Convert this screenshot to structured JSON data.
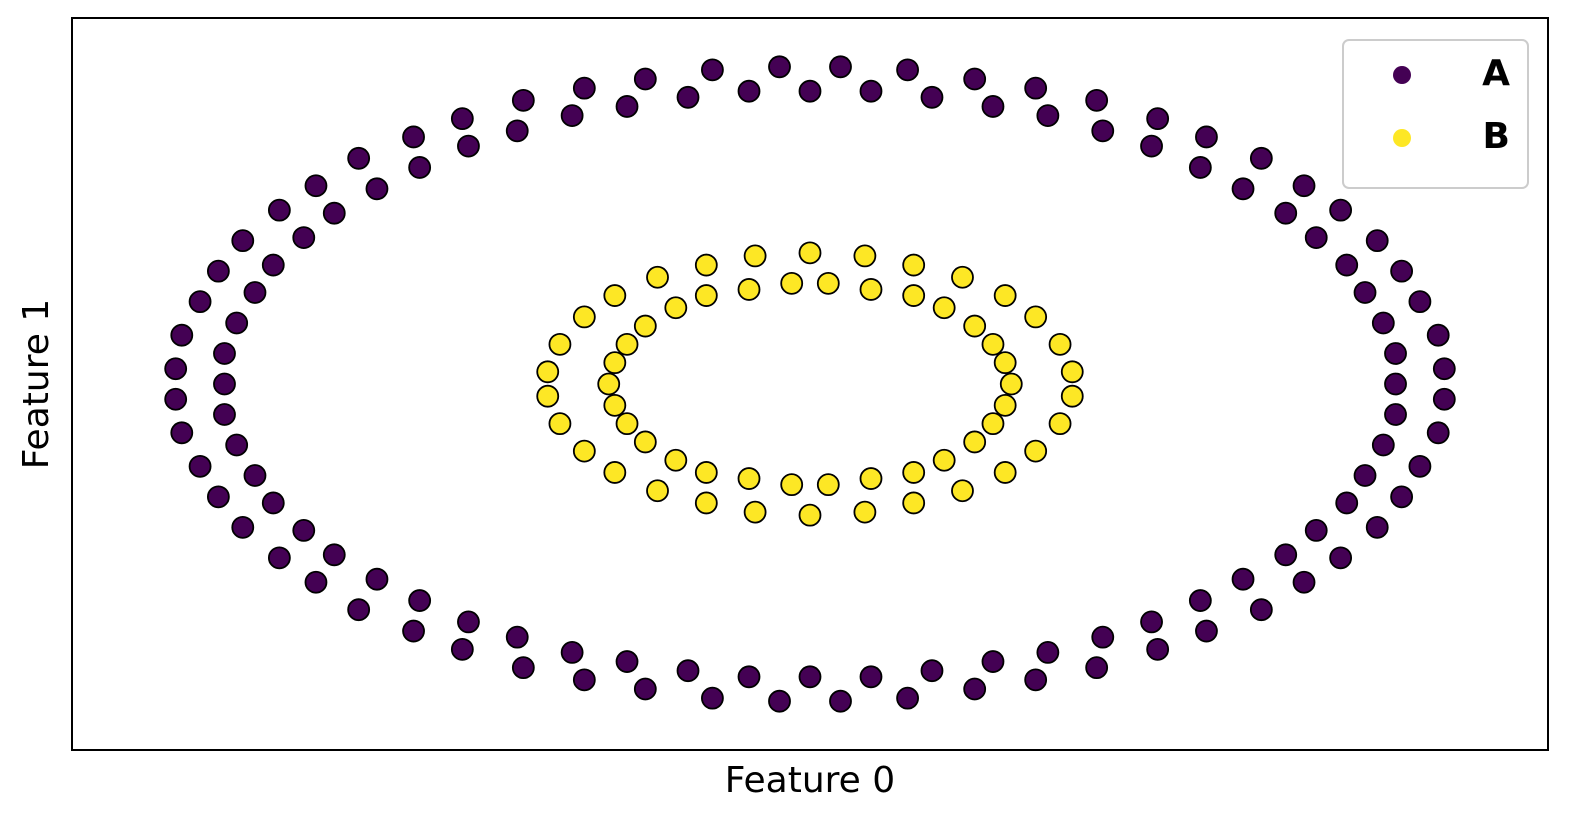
{
  "chart_data": {
    "type": "scatter",
    "xlabel": "Feature 0",
    "ylabel": "Feature 1",
    "xlim": [
      -1.21,
      1.21
    ],
    "ylim": [
      -1.2,
      1.2
    ],
    "legend": "upper right",
    "series": [
      {
        "name": "A",
        "color": "#440154",
        "x": [
          0.96,
          0.96,
          0.94,
          0.91,
          0.88,
          0.83,
          0.78,
          0.71,
          0.64,
          0.56,
          0.48,
          0.39,
          0.3,
          0.2,
          0.1,
          1.04,
          1.03,
          1.0,
          0.97,
          0.93,
          0.87,
          0.81,
          0.74,
          0.65,
          0.57,
          0.47,
          0.37,
          0.27,
          0.16,
          0.05,
          -0.96,
          -0.96,
          -0.94,
          -0.91,
          -0.88,
          -0.83,
          -0.78,
          -0.71,
          -0.64,
          -0.56,
          -0.48,
          -0.39,
          -0.3,
          -0.2,
          -0.1,
          -1.04,
          -1.03,
          -1.0,
          -0.97,
          -0.93,
          -0.87,
          -0.81,
          -0.74,
          -0.65,
          -0.57,
          -0.47,
          -0.37,
          -0.27,
          -0.16,
          -0.05,
          -0.96,
          -0.94,
          -0.91,
          -0.88,
          -0.83,
          -0.78,
          -0.71,
          -0.64,
          -0.56,
          -0.48,
          -0.39,
          -0.3,
          -0.2,
          -0.1,
          -1.04,
          -1.03,
          -1.0,
          -0.97,
          -0.93,
          -0.87,
          -0.81,
          -0.74,
          -0.65,
          -0.57,
          -0.47,
          -0.37,
          -0.27,
          -0.16,
          -0.05,
          0.96,
          0.94,
          0.91,
          0.88,
          0.83,
          0.78,
          0.71,
          0.64,
          0.56,
          0.48,
          0.39,
          0.3,
          0.2,
          0.1,
          1.04,
          1.03,
          1.0,
          0.97,
          0.93,
          0.87,
          0.81,
          0.74,
          0.65,
          0.57,
          0.47,
          0.37,
          0.27,
          0.16,
          0.05,
          0,
          0
        ],
        "values": [
          0,
          0.1,
          0.2,
          0.3,
          0.39,
          0.48,
          0.56,
          0.64,
          0.71,
          0.78,
          0.83,
          0.88,
          0.91,
          0.94,
          0.96,
          0.05,
          0.16,
          0.27,
          0.37,
          0.47,
          0.57,
          0.65,
          0.74,
          0.81,
          0.87,
          0.93,
          0.97,
          1.0,
          1.03,
          1.04,
          0,
          0.1,
          0.2,
          0.3,
          0.39,
          0.48,
          0.56,
          0.64,
          0.71,
          0.78,
          0.83,
          0.88,
          0.91,
          0.94,
          0.96,
          0.05,
          0.16,
          0.27,
          0.37,
          0.47,
          0.57,
          0.65,
          0.74,
          0.81,
          0.87,
          0.93,
          0.97,
          1.0,
          1.03,
          1.04,
          -0.1,
          -0.2,
          -0.3,
          -0.39,
          -0.48,
          -0.56,
          -0.64,
          -0.71,
          -0.78,
          -0.83,
          -0.88,
          -0.91,
          -0.94,
          -0.96,
          -0.05,
          -0.16,
          -0.27,
          -0.37,
          -0.47,
          -0.57,
          -0.65,
          -0.74,
          -0.81,
          -0.87,
          -0.93,
          -0.97,
          -1.0,
          -1.03,
          -1.04,
          -0.1,
          -0.2,
          -0.3,
          -0.39,
          -0.48,
          -0.56,
          -0.64,
          -0.71,
          -0.78,
          -0.83,
          -0.88,
          -0.91,
          -0.94,
          -0.96,
          -0.05,
          -0.16,
          -0.27,
          -0.37,
          -0.47,
          -0.57,
          -0.65,
          -0.74,
          -0.81,
          -0.87,
          -0.93,
          -0.97,
          -1.0,
          -1.03,
          -1.04,
          0.96,
          -0.96
        ]
      },
      {
        "name": "B",
        "color": "#fde725",
        "x": [
          0.33,
          0.32,
          0.3,
          0.27,
          0.22,
          0.17,
          0.1,
          0.03,
          -0.03,
          -0.1,
          -0.17,
          -0.22,
          -0.27,
          -0.3,
          -0.32,
          -0.33,
          -0.32,
          -0.3,
          -0.27,
          -0.22,
          -0.17,
          -0.1,
          -0.03,
          0.03,
          0.1,
          0.17,
          0.22,
          0.27,
          0.3,
          0.32,
          0.43,
          0.41,
          0.37,
          0.32,
          0.25,
          0.17,
          0.09,
          0,
          -0.43,
          -0.41,
          -0.37,
          -0.32,
          -0.25,
          -0.17,
          -0.09,
          -0.43,
          -0.41,
          -0.37,
          -0.32,
          -0.25,
          -0.17,
          -0.09,
          0.43,
          0.41,
          0.37,
          0.32,
          0.25,
          0.17,
          0.09,
          0
        ],
        "values": [
          0,
          0.07,
          0.13,
          0.19,
          0.25,
          0.29,
          0.31,
          0.33,
          0.33,
          0.31,
          0.29,
          0.25,
          0.19,
          0.13,
          0.07,
          0,
          -0.07,
          -0.13,
          -0.19,
          -0.25,
          -0.29,
          -0.31,
          -0.33,
          -0.33,
          -0.31,
          -0.29,
          -0.25,
          -0.19,
          -0.13,
          -0.07,
          0.04,
          0.13,
          0.22,
          0.29,
          0.35,
          0.39,
          0.42,
          0.43,
          0.04,
          0.13,
          0.22,
          0.29,
          0.35,
          0.39,
          0.42,
          -0.04,
          -0.13,
          -0.22,
          -0.29,
          -0.35,
          -0.39,
          -0.42,
          -0.04,
          -0.13,
          -0.22,
          -0.29,
          -0.35,
          -0.39,
          -0.42,
          -0.43
        ]
      }
    ]
  }
}
